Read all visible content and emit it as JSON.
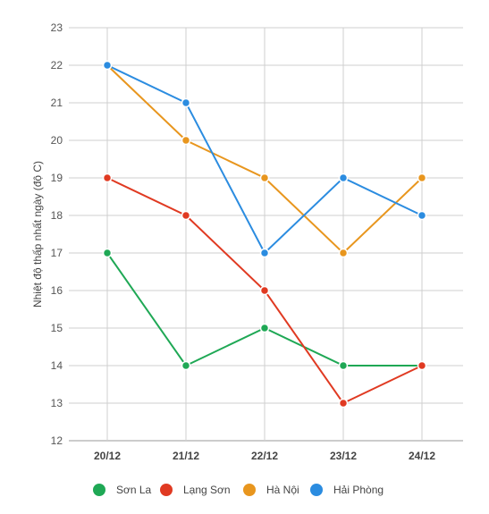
{
  "chart_data": {
    "type": "line",
    "categories": [
      "20/12",
      "21/12",
      "22/12",
      "23/12",
      "24/12"
    ],
    "ylabel": "Nhiệt độ thấp nhất ngày (độ C)",
    "ylim": [
      12,
      23
    ],
    "yticks": [
      12,
      13,
      14,
      15,
      16,
      17,
      18,
      19,
      20,
      21,
      22,
      23
    ],
    "grid": true,
    "legend_position": "bottom",
    "series": [
      {
        "name": "Sơn La",
        "color": "#1fa855",
        "values": [
          17,
          14,
          15,
          14,
          14
        ]
      },
      {
        "name": "Lạng Sơn",
        "color": "#e03a22",
        "values": [
          19,
          18,
          16,
          13,
          14
        ]
      },
      {
        "name": "Hà Nội",
        "color": "#e8961e",
        "values": [
          22,
          20,
          19,
          17,
          19
        ]
      },
      {
        "name": "Hải Phòng",
        "color": "#2b8ce0",
        "values": [
          22,
          21,
          17,
          19,
          18
        ]
      }
    ]
  }
}
